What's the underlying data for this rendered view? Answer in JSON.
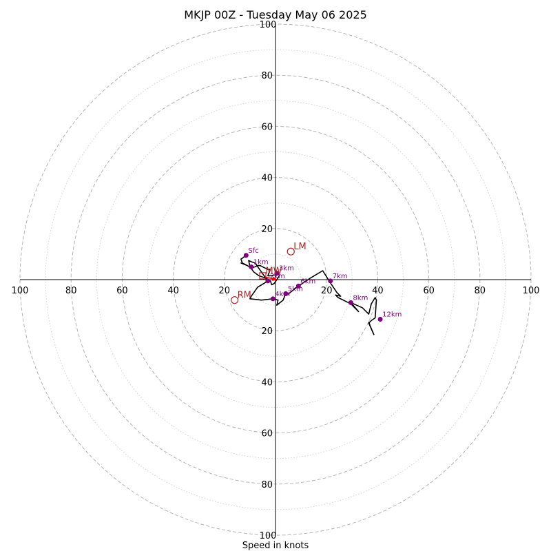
{
  "chart_data": {
    "type": "hodograph",
    "title": "MKJP 00Z - Tuesday May 06 2025",
    "xlabel": "Speed in knots",
    "ring_max": 100,
    "major_rings": [
      20,
      40,
      60,
      80,
      100
    ],
    "minor_rings": [
      10,
      30,
      50,
      70,
      90
    ],
    "tick_labels": [
      "20",
      "40",
      "60",
      "80",
      "100"
    ],
    "grid": true,
    "colors": {
      "trace": "#000000",
      "height_marker": "#800080",
      "motion_marker": "#b22222",
      "mean_wind_arrow": "#ff0000",
      "major_ring": "#b4b4b4",
      "minor_ring": "#d2d2d2",
      "axes": "#000000"
    },
    "trace": [
      [
        -11.5,
        9.5
      ],
      [
        -13.5,
        8.0
      ],
      [
        -13.0,
        6.5
      ],
      [
        -11.0,
        5.5
      ],
      [
        -13.5,
        6.5
      ],
      [
        -11.0,
        5.5
      ],
      [
        -9.5,
        4.5
      ],
      [
        -8.0,
        5.0
      ],
      [
        -7.0,
        5.5
      ],
      [
        -6.0,
        5.5
      ],
      [
        -3.0,
        4.0
      ],
      [
        -2.0,
        4.0
      ],
      [
        -3.0,
        1.5
      ],
      [
        -2.0,
        1.5
      ],
      [
        0.5,
        2.0
      ],
      [
        1.0,
        3.0
      ],
      [
        1.5,
        1.5
      ],
      [
        0.5,
        0.0
      ],
      [
        -0.5,
        -1.5
      ],
      [
        -1.5,
        -2.0
      ],
      [
        -2.0,
        -0.5
      ],
      [
        -3.0,
        0.0
      ],
      [
        -3.5,
        0.5
      ],
      [
        -6.5,
        1.5
      ],
      [
        -8.5,
        3.0
      ],
      [
        -10.0,
        5.0
      ],
      [
        -10.5,
        7.5
      ],
      [
        -9.5,
        7.0
      ],
      [
        -8.0,
        6.5
      ],
      [
        -3.0,
        -0.5
      ],
      [
        -7.0,
        -3.0
      ],
      [
        -9.5,
        -6.5
      ],
      [
        -10.0,
        -7.5
      ],
      [
        -5.5,
        -8.0
      ],
      [
        -1.0,
        -7.5
      ],
      [
        1.0,
        -8.0
      ],
      [
        0.5,
        -10.0
      ],
      [
        3.0,
        -8.0
      ],
      [
        4.0,
        -5.5
      ],
      [
        4.5,
        -6.0
      ],
      [
        9.0,
        -2.5
      ],
      [
        13.5,
        0.5
      ],
      [
        18.5,
        3.5
      ],
      [
        21.0,
        -0.5
      ],
      [
        24.0,
        -5.0
      ],
      [
        25.5,
        -6.5
      ],
      [
        23.5,
        -6.0
      ],
      [
        24.5,
        -7.0
      ],
      [
        29.5,
        -9.5
      ],
      [
        32.5,
        -12.5
      ],
      [
        29.5,
        -9.0
      ],
      [
        34.0,
        -11.0
      ],
      [
        36.5,
        -13.5
      ],
      [
        37.5,
        -9.5
      ],
      [
        39.0,
        -7.0
      ],
      [
        39.5,
        -8.0
      ],
      [
        39.0,
        -15.0
      ],
      [
        37.5,
        -16.0
      ],
      [
        36.5,
        -17.0
      ],
      [
        38.5,
        -21.5
      ],
      [
        37.0,
        -18.0
      ],
      [
        36.5,
        -16.5
      ]
    ],
    "height_markers": [
      {
        "label": "Sfc",
        "u": -11.5,
        "v": 9.5
      },
      {
        "label": "1km",
        "u": -9.5,
        "v": 5.0
      },
      {
        "label": "2km",
        "u": -3.0,
        "v": -0.5
      },
      {
        "label": "3km",
        "u": 0.5,
        "v": 2.5
      },
      {
        "label": "4km",
        "u": -1.0,
        "v": -7.5
      },
      {
        "label": "5km",
        "u": 4.0,
        "v": -5.5
      },
      {
        "label": "6km",
        "u": 9.0,
        "v": -2.5
      },
      {
        "label": "7km",
        "u": 21.5,
        "v": -0.5
      },
      {
        "label": "8km",
        "u": 29.5,
        "v": -9.0
      },
      {
        "label": "12km",
        "u": 41.0,
        "v": -15.5
      }
    ],
    "storm_motions": [
      {
        "label": "LM",
        "u": 6.0,
        "v": 11.0
      },
      {
        "label": "RM",
        "u": -16.0,
        "v": -8.0
      }
    ],
    "mean_wind": {
      "label": "MW",
      "u": -5.0,
      "v": 1.5
    },
    "mean_wind_arrow": {
      "from": [
        -4.0,
        1.0
      ],
      "to": [
        0.5,
        0.0
      ]
    }
  }
}
